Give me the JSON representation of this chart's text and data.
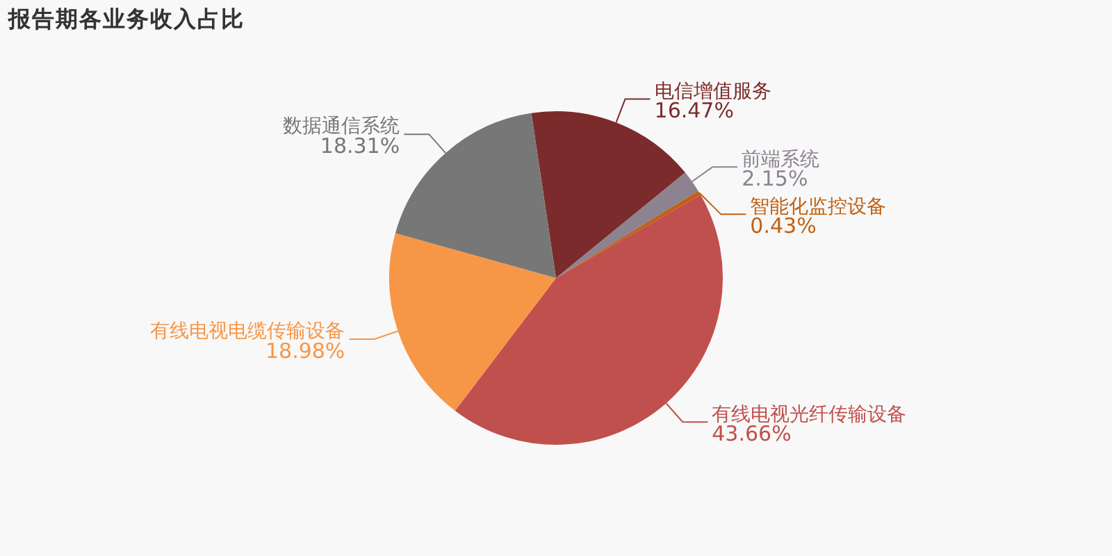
{
  "chart_data": {
    "type": "pie",
    "title": "报告期各业务收入占比",
    "categories": [
      "电信增值服务",
      "前端系统",
      "智能化监控设备",
      "有线电视光纤传输设备",
      "有线电视电缆传输设备",
      "数据通信系统"
    ],
    "values": [
      16.47,
      2.15,
      0.43,
      43.66,
      18.98,
      18.31
    ],
    "colors": [
      "#7b2b2b",
      "#8c8290",
      "#c06010",
      "#c0504d",
      "#f79646",
      "#777777"
    ],
    "value_labels": [
      "16.47%",
      "2.15%",
      "0.43%",
      "43.66%",
      "18.98%",
      "18.31%"
    ],
    "legend": false
  }
}
